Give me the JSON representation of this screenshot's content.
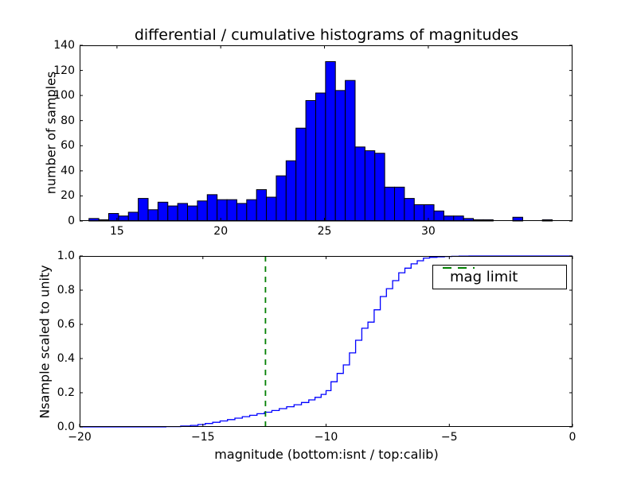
{
  "figure": {
    "background": "#ffffff",
    "frame_color": "#000000"
  },
  "chart_data": [
    {
      "type": "bar",
      "id": "differential-histogram",
      "title": "differential / cumulative histograms of magnitudes",
      "ylabel": "number of samples",
      "xlabel": "",
      "grid": false,
      "xlim": [
        13.2,
        36.95
      ],
      "ylim": [
        0,
        140
      ],
      "xticks": [
        15,
        20,
        25,
        30
      ],
      "xticklabels": [
        "15",
        "20",
        "25",
        "30"
      ],
      "yticks": [
        0,
        20,
        40,
        60,
        80,
        100,
        120,
        140
      ],
      "yticklabels": [
        "0",
        "20",
        "40",
        "60",
        "80",
        "100",
        "120",
        "140"
      ],
      "bar_color": "#0000ff",
      "bar_edge_color": "#000000",
      "bins": {
        "start": 13.65,
        "width": 0.475
      },
      "counts": [
        2,
        1,
        6,
        4,
        7,
        18,
        9,
        15,
        12,
        14,
        12,
        16,
        21,
        17,
        17,
        14,
        17,
        25,
        19,
        36,
        48,
        74,
        96,
        102,
        127,
        104,
        112,
        59,
        56,
        54,
        27,
        27,
        18,
        13,
        13,
        8,
        4,
        4,
        2,
        1,
        1,
        0,
        0,
        3,
        0,
        0,
        1
      ]
    },
    {
      "type": "line",
      "id": "cumulative-histogram",
      "step": true,
      "title": "",
      "ylabel": "Nsample scaled to unity",
      "xlabel": "magnitude (bottom:isnt / top:calib)",
      "grid": false,
      "xlim": [
        -20,
        0
      ],
      "ylim": [
        0,
        1
      ],
      "xticks": [
        -20,
        -15,
        -10,
        -5,
        0
      ],
      "xticklabels": [
        "−20",
        "−15",
        "−10",
        "−5",
        "0"
      ],
      "yticks": [
        0,
        0.2,
        0.4,
        0.6,
        0.8,
        1
      ],
      "yticklabels": [
        "0.0",
        "0.2",
        "0.4",
        "0.6",
        "0.8",
        "1.0"
      ],
      "line_color": "#0000ff",
      "points": [
        [
          -20,
          0
        ],
        [
          -16.5,
          0.002
        ],
        [
          -15.9,
          0.005
        ],
        [
          -15.5,
          0.009
        ],
        [
          -15.2,
          0.014
        ],
        [
          -14.9,
          0.02
        ],
        [
          -14.6,
          0.027
        ],
        [
          -14.3,
          0.035
        ],
        [
          -14.0,
          0.043
        ],
        [
          -13.7,
          0.051
        ],
        [
          -13.4,
          0.06
        ],
        [
          -13.1,
          0.068
        ],
        [
          -12.8,
          0.077
        ],
        [
          -12.5,
          0.086
        ],
        [
          -12.2,
          0.096
        ],
        [
          -11.9,
          0.107
        ],
        [
          -11.6,
          0.118
        ],
        [
          -11.3,
          0.13
        ],
        [
          -11.0,
          0.143
        ],
        [
          -10.7,
          0.158
        ],
        [
          -10.45,
          0.173
        ],
        [
          -10.2,
          0.19
        ],
        [
          -10.0,
          0.212
        ],
        [
          -9.8,
          0.264
        ],
        [
          -9.55,
          0.313
        ],
        [
          -9.3,
          0.363
        ],
        [
          -9.05,
          0.433
        ],
        [
          -8.8,
          0.507
        ],
        [
          -8.55,
          0.577
        ],
        [
          -8.3,
          0.613
        ],
        [
          -8.05,
          0.685
        ],
        [
          -7.8,
          0.763
        ],
        [
          -7.55,
          0.809
        ],
        [
          -7.3,
          0.856
        ],
        [
          -7.05,
          0.902
        ],
        [
          -6.8,
          0.929
        ],
        [
          -6.55,
          0.954
        ],
        [
          -6.3,
          0.972
        ],
        [
          -6.05,
          0.988
        ],
        [
          -5.8,
          0.992
        ],
        [
          -5.5,
          0.995
        ],
        [
          -5.2,
          0.997
        ],
        [
          -4.9,
          0.998
        ],
        [
          -4.6,
          0.999
        ],
        [
          -4.2,
          1.0
        ],
        [
          0,
          1.0
        ]
      ],
      "vline": {
        "x": -12.46,
        "color": "#008000",
        "style": "dashed"
      },
      "legend": {
        "position": "upper right",
        "entries": [
          {
            "label": "mag limit",
            "color": "#008000",
            "style": "dashed"
          }
        ]
      }
    }
  ]
}
